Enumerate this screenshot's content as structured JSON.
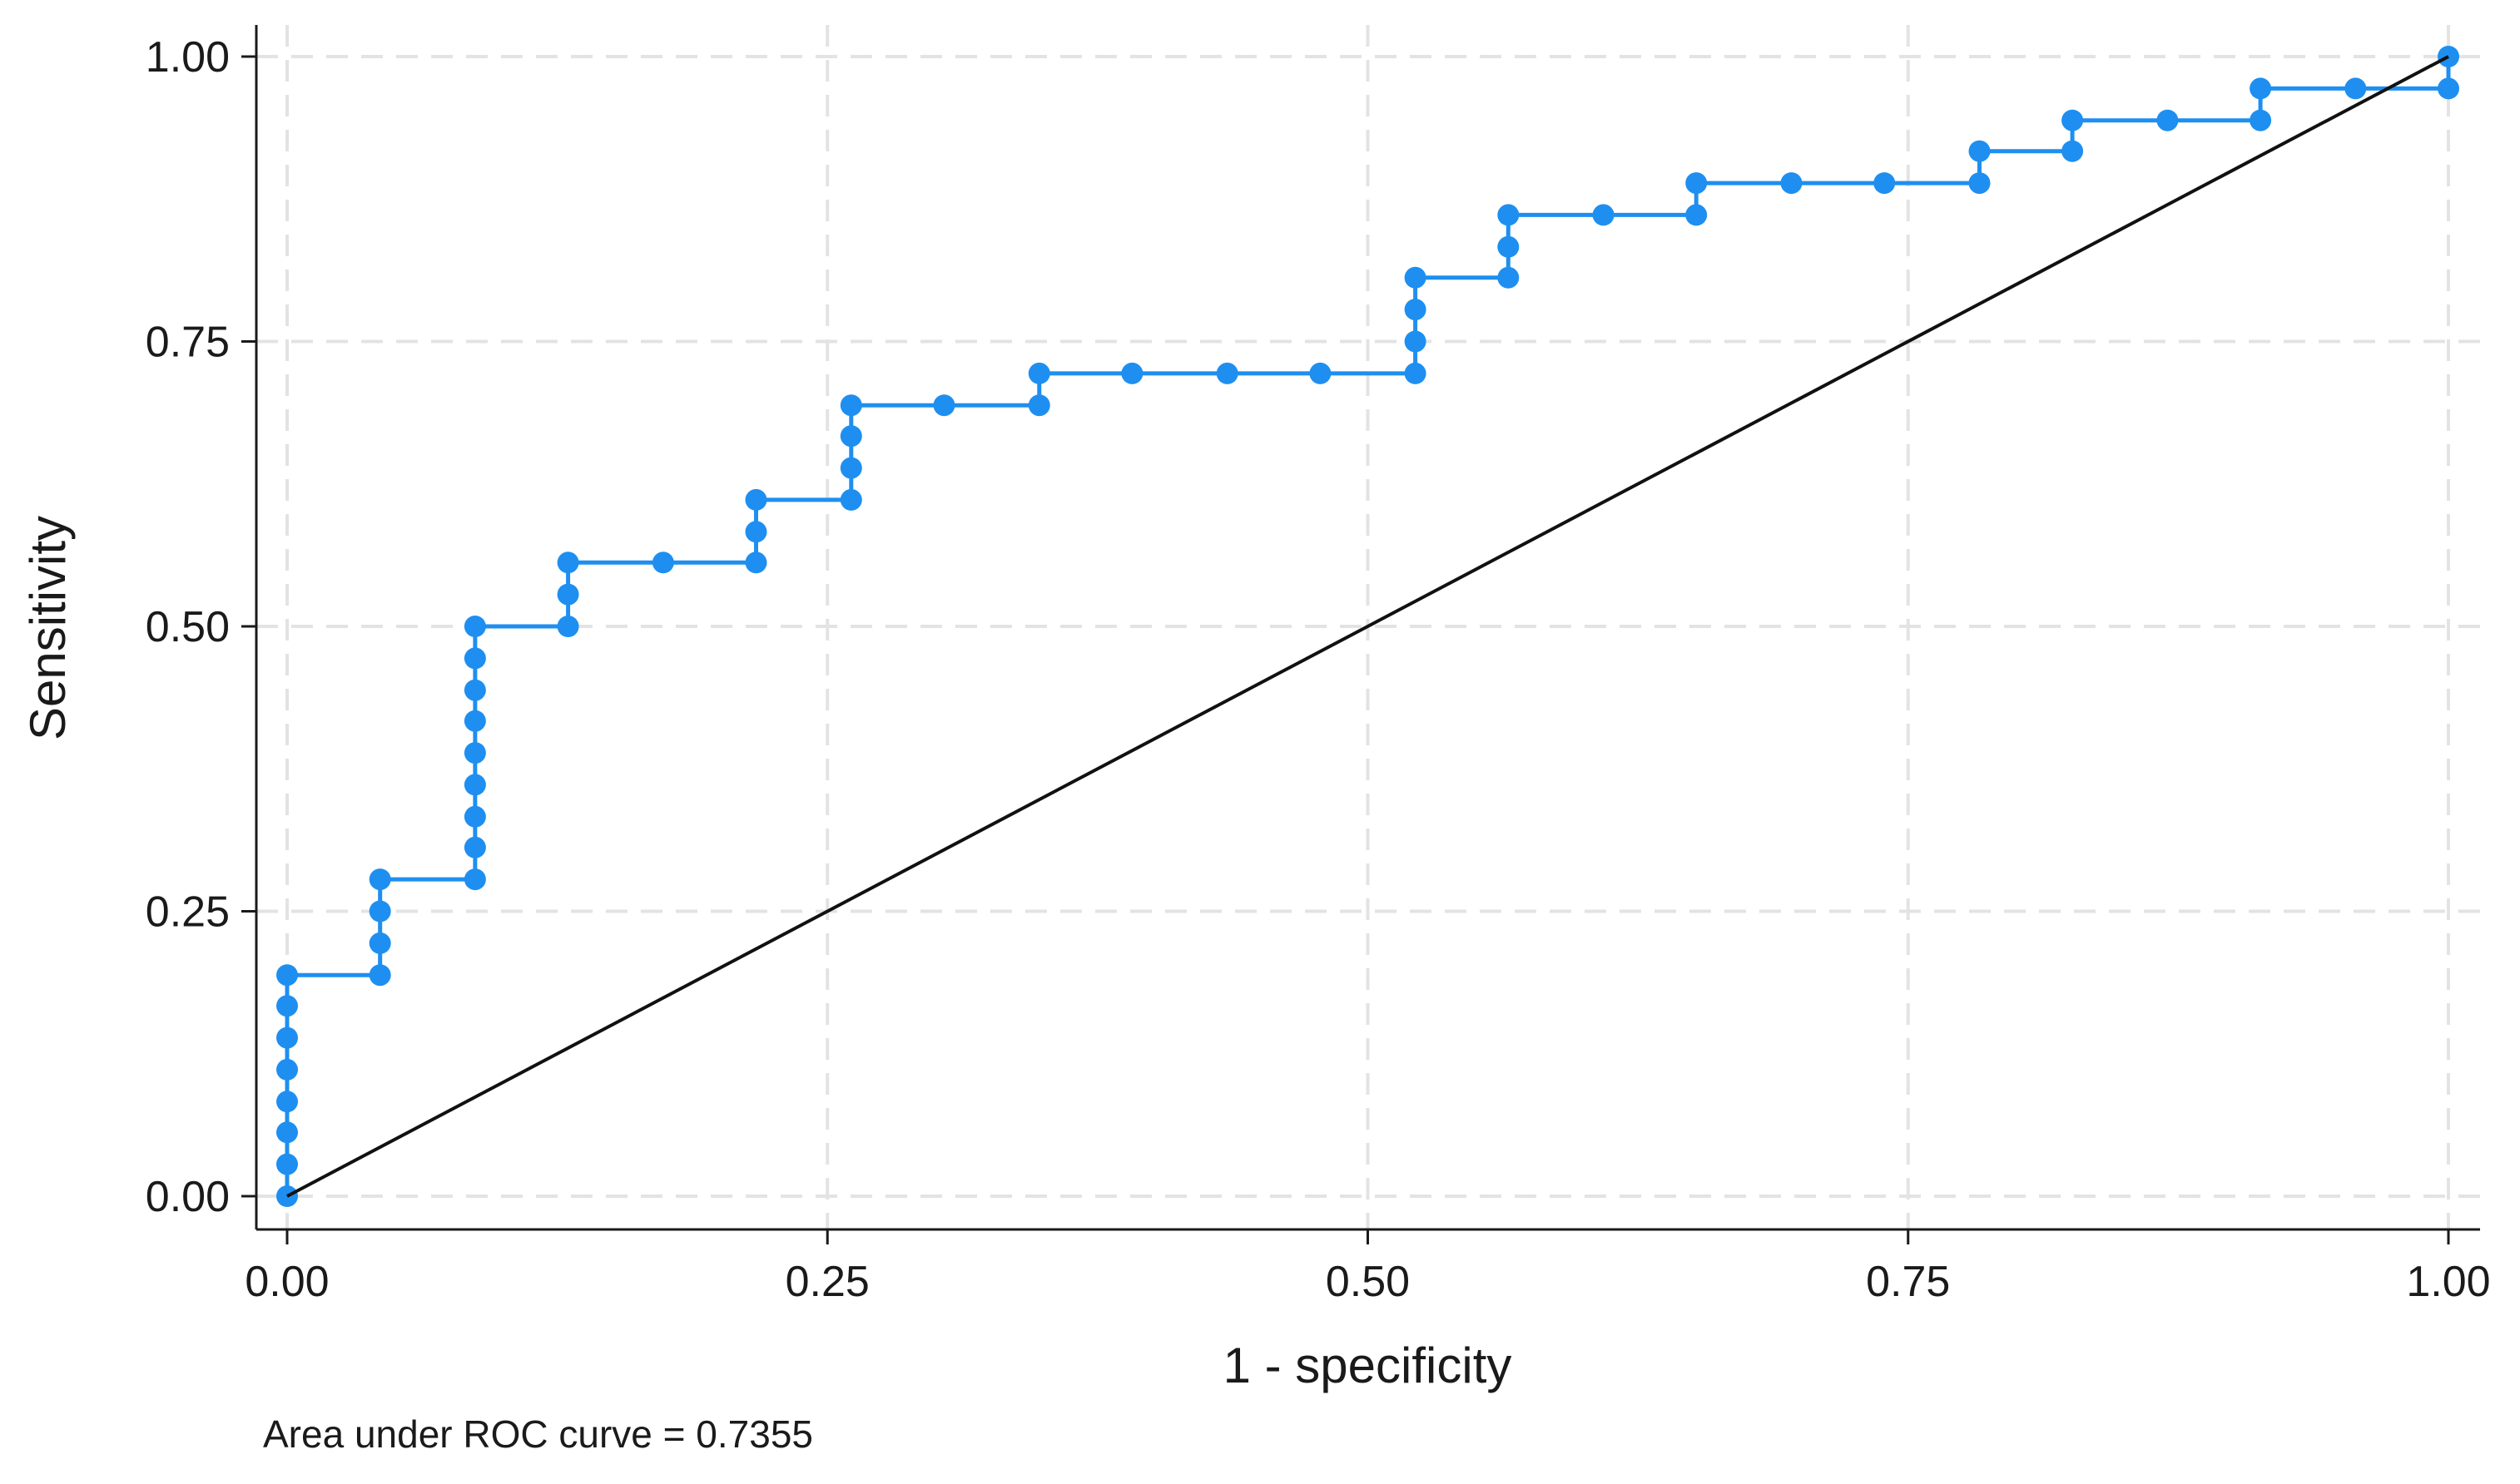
{
  "chart_data": {
    "type": "line",
    "title": "",
    "xlabel": "1 - specificity",
    "ylabel": "Sensitivity",
    "xlim": [
      0,
      1
    ],
    "ylim": [
      0,
      1
    ],
    "x_ticks": [
      "0.00",
      "0.25",
      "0.50",
      "0.75",
      "1.00"
    ],
    "y_ticks": [
      "0.00",
      "0.25",
      "0.50",
      "0.75",
      "1.00"
    ],
    "grid": true,
    "legend": false,
    "annotation": "Area under ROC curve = 0.7355",
    "series": [
      {
        "color": "#1e8ff0",
        "marker": "circle",
        "points": [
          [
            0.0,
            0.0
          ],
          [
            0.0,
            0.028
          ],
          [
            0.0,
            0.056
          ],
          [
            0.0,
            0.083
          ],
          [
            0.0,
            0.111
          ],
          [
            0.0,
            0.139
          ],
          [
            0.0,
            0.167
          ],
          [
            0.0,
            0.194
          ],
          [
            0.043,
            0.194
          ],
          [
            0.043,
            0.222
          ],
          [
            0.043,
            0.25
          ],
          [
            0.043,
            0.278
          ],
          [
            0.087,
            0.278
          ],
          [
            0.087,
            0.306
          ],
          [
            0.087,
            0.333
          ],
          [
            0.087,
            0.361
          ],
          [
            0.087,
            0.389
          ],
          [
            0.087,
            0.417
          ],
          [
            0.087,
            0.444
          ],
          [
            0.087,
            0.472
          ],
          [
            0.087,
            0.5
          ],
          [
            0.13,
            0.5
          ],
          [
            0.13,
            0.528
          ],
          [
            0.13,
            0.556
          ],
          [
            0.174,
            0.556
          ],
          [
            0.217,
            0.556
          ],
          [
            0.217,
            0.583
          ],
          [
            0.217,
            0.611
          ],
          [
            0.261,
            0.611
          ],
          [
            0.261,
            0.639
          ],
          [
            0.261,
            0.667
          ],
          [
            0.261,
            0.694
          ],
          [
            0.304,
            0.694
          ],
          [
            0.348,
            0.694
          ],
          [
            0.348,
            0.722
          ],
          [
            0.391,
            0.722
          ],
          [
            0.435,
            0.722
          ],
          [
            0.478,
            0.722
          ],
          [
            0.522,
            0.722
          ],
          [
            0.522,
            0.75
          ],
          [
            0.522,
            0.778
          ],
          [
            0.522,
            0.806
          ],
          [
            0.565,
            0.806
          ],
          [
            0.565,
            0.833
          ],
          [
            0.565,
            0.861
          ],
          [
            0.609,
            0.861
          ],
          [
            0.652,
            0.861
          ],
          [
            0.652,
            0.889
          ],
          [
            0.696,
            0.889
          ],
          [
            0.739,
            0.889
          ],
          [
            0.783,
            0.889
          ],
          [
            0.783,
            0.917
          ],
          [
            0.826,
            0.917
          ],
          [
            0.826,
            0.944
          ],
          [
            0.87,
            0.944
          ],
          [
            0.913,
            0.944
          ],
          [
            0.913,
            0.972
          ],
          [
            0.957,
            0.972
          ],
          [
            1.0,
            0.972
          ],
          [
            1.0,
            1.0
          ]
        ]
      },
      {
        "color": "#111111",
        "marker": "none",
        "points": [
          [
            0,
            0
          ],
          [
            1,
            1
          ]
        ]
      }
    ]
  }
}
